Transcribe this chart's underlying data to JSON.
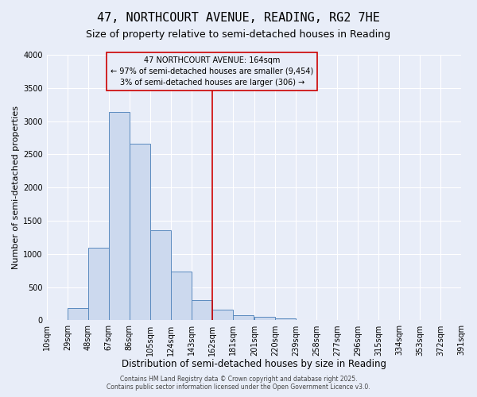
{
  "title": "47, NORTHCOURT AVENUE, READING, RG2 7HE",
  "subtitle": "Size of property relative to semi-detached houses in Reading",
  "xlabel": "Distribution of semi-detached houses by size in Reading",
  "ylabel": "Number of semi-detached properties",
  "bar_values": [
    0,
    190,
    1090,
    3140,
    2660,
    1360,
    740,
    310,
    160,
    80,
    50,
    30,
    10,
    0,
    0,
    0,
    0,
    0,
    0
  ],
  "bin_edges": [
    10,
    29,
    48,
    67,
    86,
    105,
    124,
    143,
    162,
    181,
    201,
    220,
    239,
    258,
    277,
    296,
    315,
    334,
    353,
    372
  ],
  "tick_labels": [
    "10sqm",
    "29sqm",
    "48sqm",
    "67sqm",
    "86sqm",
    "105sqm",
    "124sqm",
    "143sqm",
    "162sqm",
    "181sqm",
    "201sqm",
    "220sqm",
    "239sqm",
    "258sqm",
    "277sqm",
    "296sqm",
    "315sqm",
    "334sqm",
    "353sqm",
    "372sqm",
    "391sqm"
  ],
  "bar_facecolor": "#ccd9ee",
  "bar_edgecolor": "#5a8abf",
  "vline_x": 162,
  "vline_color": "#cc0000",
  "ylim": [
    0,
    4000
  ],
  "yticks": [
    0,
    500,
    1000,
    1500,
    2000,
    2500,
    3000,
    3500,
    4000
  ],
  "annotation_title": "47 NORTHCOURT AVENUE: 164sqm",
  "annotation_line1": "← 97% of semi-detached houses are smaller (9,454)",
  "annotation_line2": "3% of semi-detached houses are larger (306) →",
  "annotation_box_color": "#cc0000",
  "footer_line1": "Contains HM Land Registry data © Crown copyright and database right 2025.",
  "footer_line2": "Contains public sector information licensed under the Open Government Licence v3.0.",
  "background_color": "#e8edf8",
  "grid_color": "#ffffff",
  "title_fontsize": 11,
  "subtitle_fontsize": 9,
  "xlabel_fontsize": 8.5,
  "ylabel_fontsize": 8,
  "tick_fontsize": 7,
  "annotation_fontsize": 7,
  "footer_fontsize": 5.5
}
